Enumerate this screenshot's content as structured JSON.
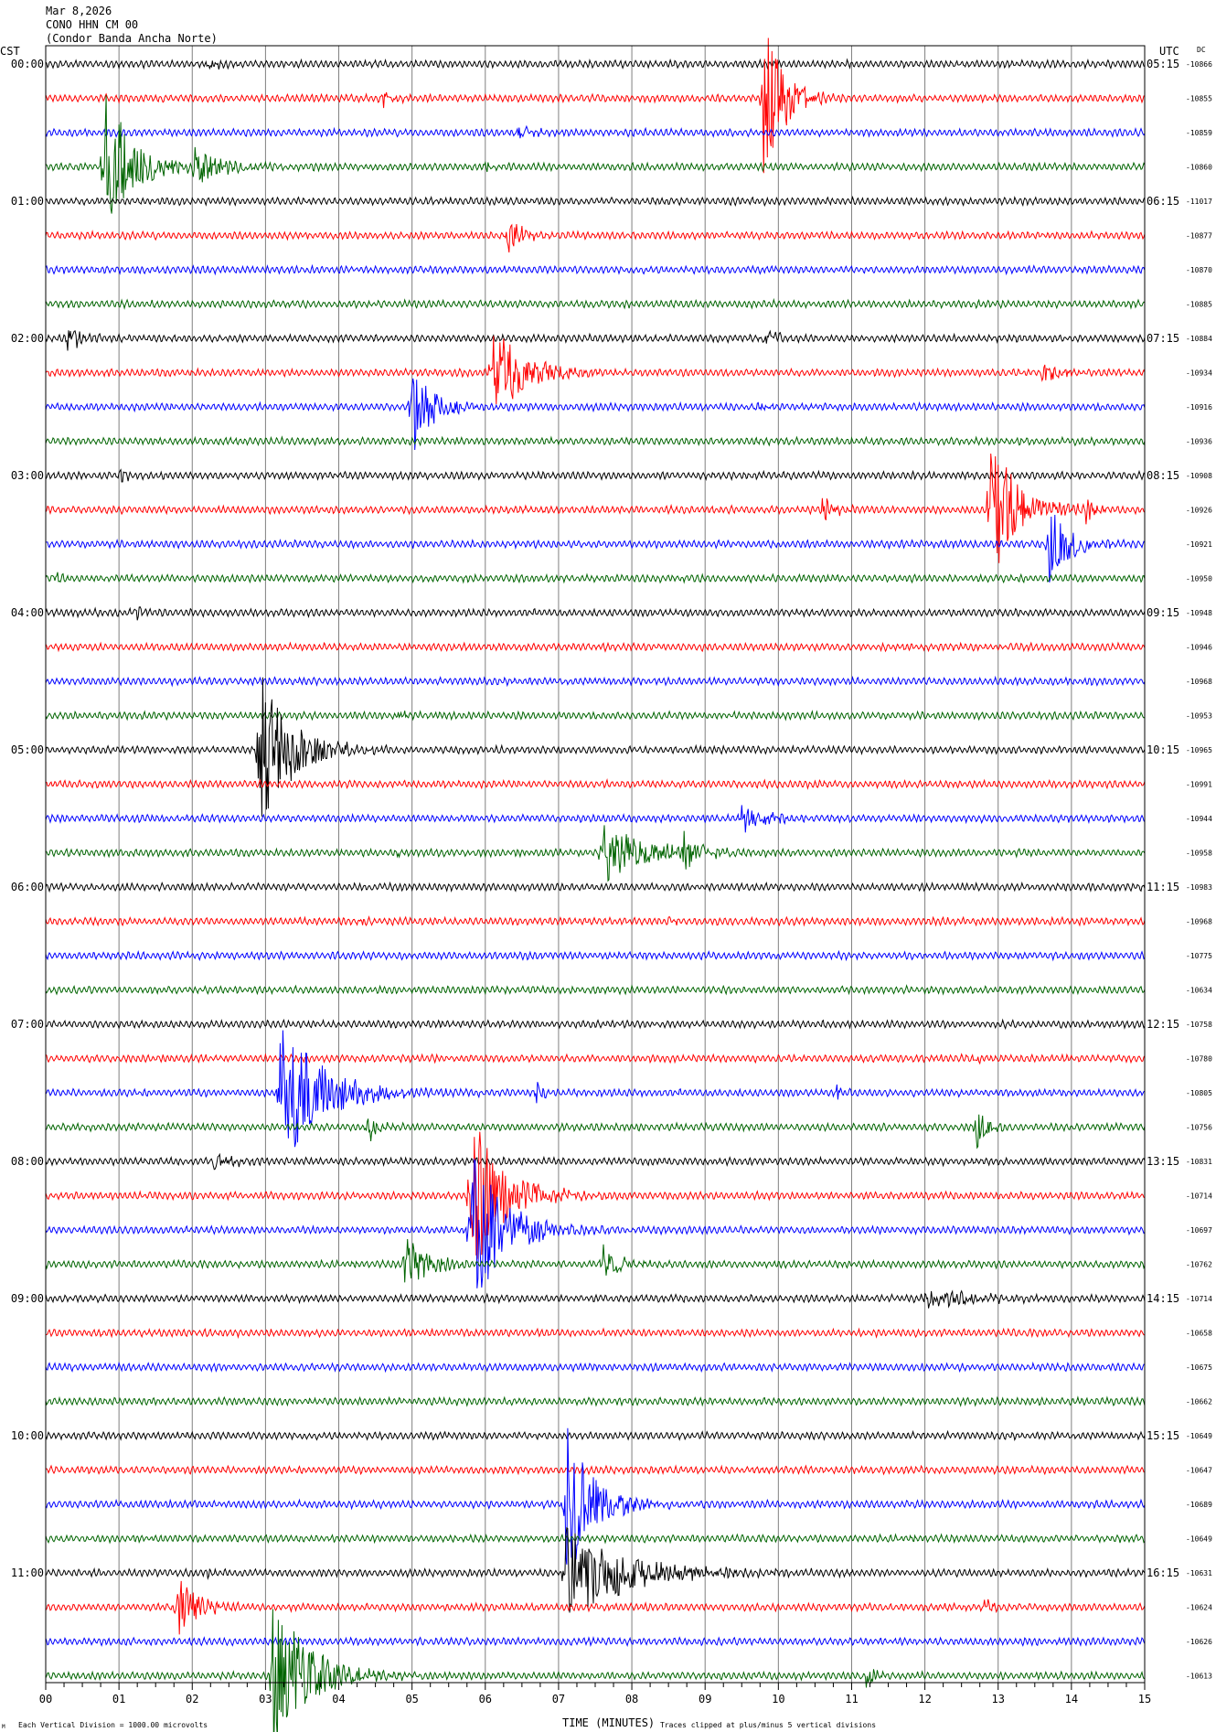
{
  "header": {
    "date": "Mar 8,2026",
    "station": "CONO HHN CM 00",
    "network": "(Condor Banda Ancha Norte)"
  },
  "left_zone": "CST",
  "right_zone": "UTC",
  "dc_label": "DC",
  "footer": {
    "scale_note": "Each Vertical Division = 1000.00 microvolts",
    "x_axis_label": "TIME (MINUTES)",
    "clip_note": "Traces clipped at plus/minus 5 vertical divisions",
    "corner_mark": "M"
  },
  "colors": {
    "trace_cycle": [
      "#000000",
      "#ff0000",
      "#0000ff",
      "#006400"
    ],
    "grid": "#808080",
    "frame": "#000000"
  },
  "chart_data": {
    "type": "line",
    "description_of_axes": "helicorder",
    "xlim": [
      0,
      15
    ],
    "x_ticks": [
      "00",
      "01",
      "02",
      "03",
      "04",
      "05",
      "06",
      "07",
      "08",
      "09",
      "10",
      "11",
      "12",
      "13",
      "14",
      "15"
    ],
    "minutes_per_line": 15,
    "line_count": 48,
    "left_hour_labels": [
      "00:00",
      "01:00",
      "02:00",
      "03:00",
      "04:00",
      "05:00",
      "06:00",
      "07:00",
      "08:00",
      "09:00",
      "10:00",
      "11:00"
    ],
    "right_hour_labels": [
      "05:15",
      "06:15",
      "07:15",
      "08:15",
      "09:15",
      "10:15",
      "11:15",
      "12:15",
      "13:15",
      "14:15",
      "15:15",
      "16:15"
    ],
    "dc_offsets": [
      "-10866",
      "-10855",
      "-10859",
      "-10860",
      "-11017",
      "-10877",
      "-10870",
      "-10885",
      "-10884",
      "-10934",
      "-10916",
      "-10936",
      "-10908",
      "-10926",
      "-10921",
      "-10950",
      "-10948",
      "-10946",
      "-10968",
      "-10953",
      "-10965",
      "-10991",
      "-10944",
      "-10958",
      "-10983",
      "-10968",
      "-10775",
      "-10634",
      "-10758",
      "-10780",
      "-10805",
      "-10756",
      "-10831",
      "-10714",
      "-10697",
      "-10762",
      "-10714",
      "-10658",
      "-10675",
      "-10662",
      "-10649",
      "-10647",
      "-10689",
      "-10649",
      "-10631",
      "-10624",
      "-10626",
      "-10613"
    ],
    "events": [
      {
        "line": 0,
        "minute": 2.2,
        "amp": 0.4,
        "dur": 0.3
      },
      {
        "line": 1,
        "minute": 9.8,
        "amp": 5.0,
        "dur": 0.6
      },
      {
        "line": 1,
        "minute": 4.6,
        "amp": 0.5,
        "dur": 0.3
      },
      {
        "line": 2,
        "minute": 6.45,
        "amp": 0.6,
        "dur": 0.3
      },
      {
        "line": 3,
        "minute": 0.8,
        "amp": 5.0,
        "dur": 0.8
      },
      {
        "line": 3,
        "minute": 2.0,
        "amp": 1.2,
        "dur": 0.9
      },
      {
        "line": 3,
        "minute": 6.0,
        "amp": 0.4,
        "dur": 0.2
      },
      {
        "line": 5,
        "minute": 6.3,
        "amp": 1.0,
        "dur": 0.5
      },
      {
        "line": 8,
        "minute": 0.3,
        "amp": 0.7,
        "dur": 0.5
      },
      {
        "line": 8,
        "minute": 9.8,
        "amp": 0.6,
        "dur": 0.4
      },
      {
        "line": 9,
        "minute": 6.1,
        "amp": 3.0,
        "dur": 0.9
      },
      {
        "line": 9,
        "minute": 13.6,
        "amp": 0.6,
        "dur": 0.6
      },
      {
        "line": 10,
        "minute": 5.0,
        "amp": 3.0,
        "dur": 0.6
      },
      {
        "line": 10,
        "minute": 9.7,
        "amp": 0.4,
        "dur": 0.3
      },
      {
        "line": 12,
        "minute": 1.0,
        "amp": 0.5,
        "dur": 0.3
      },
      {
        "line": 13,
        "minute": 10.6,
        "amp": 1.0,
        "dur": 0.3
      },
      {
        "line": 13,
        "minute": 12.9,
        "amp": 5.0,
        "dur": 0.8
      },
      {
        "line": 13,
        "minute": 14.2,
        "amp": 0.8,
        "dur": 0.3
      },
      {
        "line": 14,
        "minute": 13.7,
        "amp": 2.5,
        "dur": 0.6
      },
      {
        "line": 15,
        "minute": 0.1,
        "amp": 0.4,
        "dur": 0.2
      },
      {
        "line": 16,
        "minute": 1.2,
        "amp": 0.4,
        "dur": 0.3
      },
      {
        "line": 19,
        "minute": 4.8,
        "amp": 0.4,
        "dur": 0.2
      },
      {
        "line": 20,
        "minute": 2.9,
        "amp": 5.0,
        "dur": 1.0
      },
      {
        "line": 22,
        "minute": 9.5,
        "amp": 0.8,
        "dur": 0.8
      },
      {
        "line": 23,
        "minute": 7.6,
        "amp": 1.8,
        "dur": 1.5
      },
      {
        "line": 23,
        "minute": 8.7,
        "amp": 1.5,
        "dur": 0.4
      },
      {
        "line": 23,
        "minute": 4.8,
        "amp": 0.4,
        "dur": 0.2
      },
      {
        "line": 25,
        "minute": 4.3,
        "amp": 0.4,
        "dur": 0.2
      },
      {
        "line": 25,
        "minute": 8.5,
        "amp": 0.3,
        "dur": 0.2
      },
      {
        "line": 29,
        "minute": 12.7,
        "amp": 0.3,
        "dur": 0.2
      },
      {
        "line": 30,
        "minute": 3.2,
        "amp": 5.0,
        "dur": 1.2
      },
      {
        "line": 30,
        "minute": 6.7,
        "amp": 0.7,
        "dur": 0.2
      },
      {
        "line": 30,
        "minute": 10.8,
        "amp": 0.5,
        "dur": 0.2
      },
      {
        "line": 31,
        "minute": 4.4,
        "amp": 1.2,
        "dur": 0.3
      },
      {
        "line": 31,
        "minute": 12.7,
        "amp": 1.5,
        "dur": 0.3
      },
      {
        "line": 32,
        "minute": 2.3,
        "amp": 0.6,
        "dur": 0.6
      },
      {
        "line": 33,
        "minute": 5.8,
        "amp": 5.0,
        "dur": 1.0
      },
      {
        "line": 34,
        "minute": 5.8,
        "amp": 5.0,
        "dur": 1.0
      },
      {
        "line": 35,
        "minute": 4.9,
        "amp": 1.8,
        "dur": 0.7
      },
      {
        "line": 35,
        "minute": 7.6,
        "amp": 1.3,
        "dur": 0.5
      },
      {
        "line": 36,
        "minute": 12.0,
        "amp": 0.6,
        "dur": 1.5
      },
      {
        "line": 42,
        "minute": 7.1,
        "amp": 5.0,
        "dur": 0.8
      },
      {
        "line": 44,
        "minute": 7.1,
        "amp": 3.0,
        "dur": 1.8
      },
      {
        "line": 44,
        "minute": 2.2,
        "amp": 0.4,
        "dur": 0.2
      },
      {
        "line": 45,
        "minute": 1.8,
        "amp": 1.8,
        "dur": 0.6
      },
      {
        "line": 45,
        "minute": 12.8,
        "amp": 0.5,
        "dur": 0.3
      },
      {
        "line": 47,
        "minute": 3.1,
        "amp": 5.0,
        "dur": 1.0
      },
      {
        "line": 47,
        "minute": 11.2,
        "amp": 0.8,
        "dur": 0.3
      }
    ]
  }
}
